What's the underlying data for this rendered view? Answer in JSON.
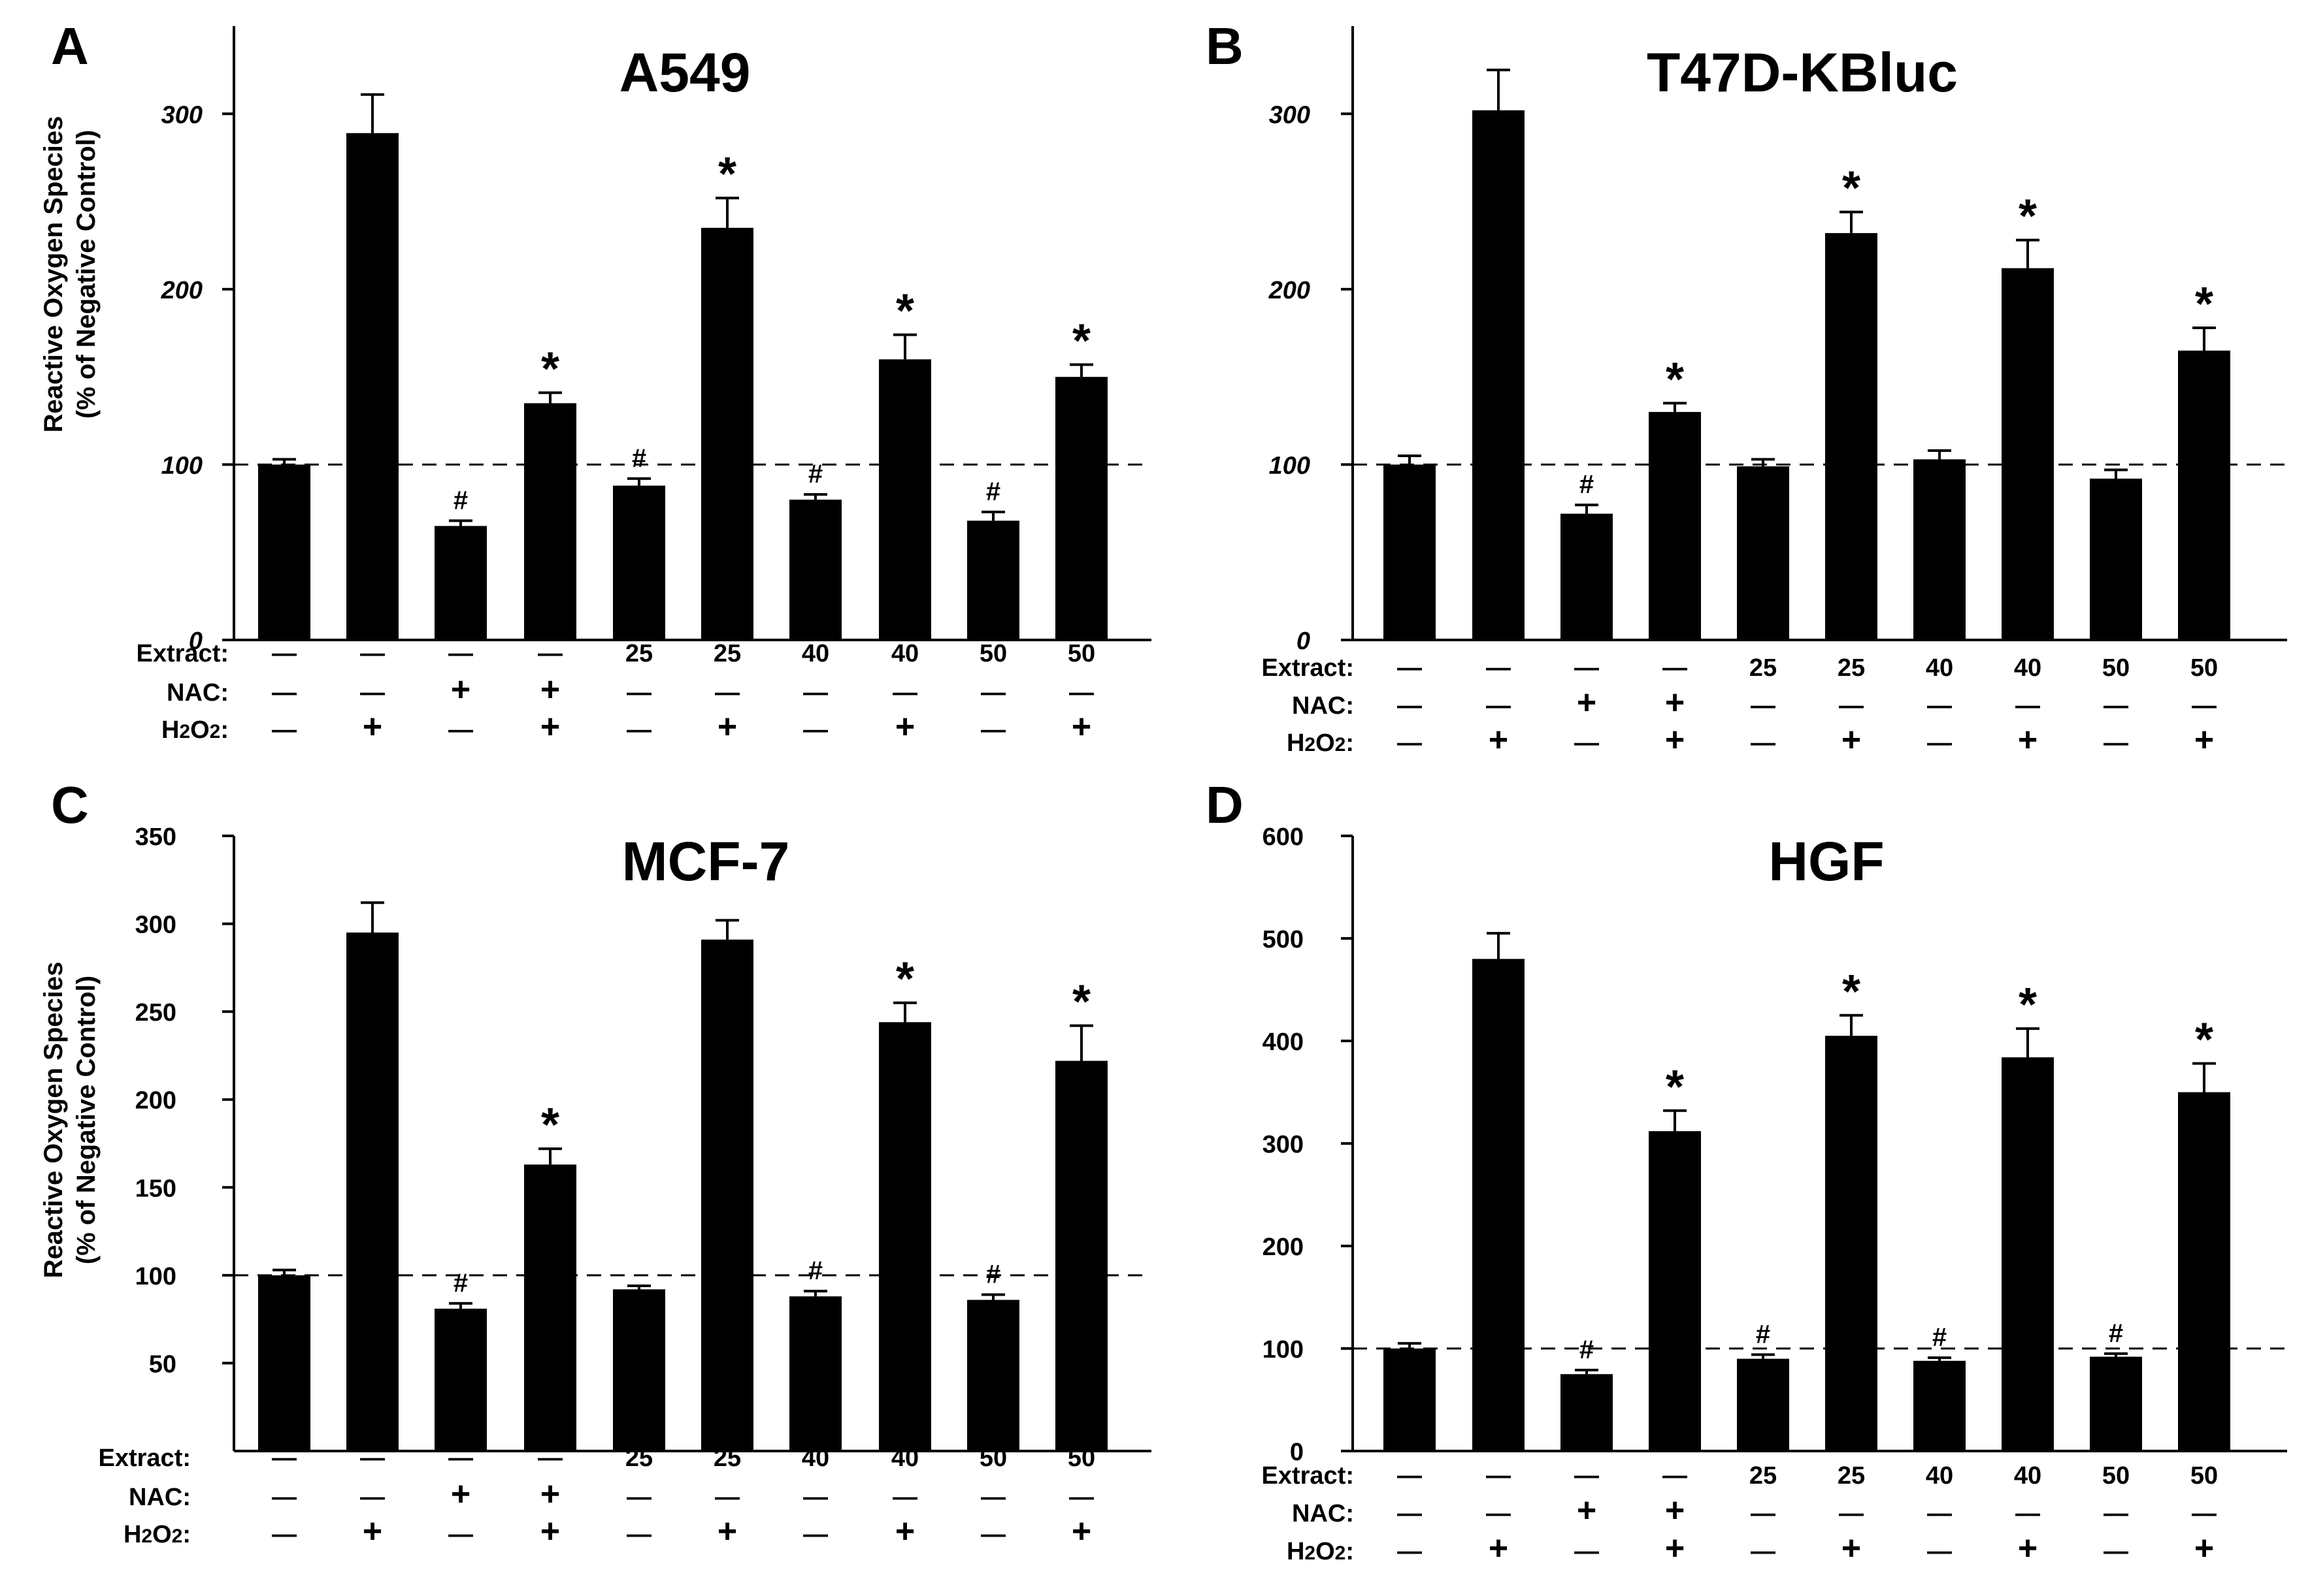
{
  "chart_data": [
    {
      "panel_label": "A",
      "type": "bar",
      "title": "A549",
      "ylabel_line1": "Reactive Oxygen Species",
      "ylabel_line2": "(% of Negative Control)",
      "ylim": [
        0,
        350
      ],
      "yticks": [
        0,
        100,
        200,
        300
      ],
      "ytick_labels": [
        "0",
        "100",
        "200",
        "300"
      ],
      "tick_style": "italic",
      "reference_line": 100,
      "values": [
        100,
        289,
        65,
        135,
        88,
        235,
        80,
        160,
        68,
        150
      ],
      "errors": [
        3,
        22,
        3,
        6,
        4,
        17,
        3,
        14,
        5,
        7
      ],
      "annotations": [
        "",
        "",
        "#",
        "*",
        "#",
        "*",
        "#",
        "*",
        "#",
        "*"
      ],
      "condition_labels": [
        "Extract:",
        "NAC:",
        "H2O2:"
      ],
      "extract": [
        "—",
        "—",
        "—",
        "—",
        "25",
        "25",
        "40",
        "40",
        "50",
        "50"
      ],
      "nac": [
        "—",
        "—",
        "+",
        "+",
        "—",
        "—",
        "—",
        "—",
        "—",
        "—"
      ],
      "h2o2": [
        "—",
        "+",
        "—",
        "+",
        "—",
        "+",
        "—",
        "+",
        "—",
        "+"
      ]
    },
    {
      "panel_label": "B",
      "type": "bar",
      "title": "T47D-KBluc",
      "ylabel_line1": "",
      "ylabel_line2": "",
      "ylim": [
        0,
        350
      ],
      "yticks": [
        0,
        100,
        200,
        300
      ],
      "ytick_labels": [
        "0",
        "100",
        "200",
        "300"
      ],
      "tick_style": "italic",
      "reference_line": 100,
      "values": [
        100,
        302,
        72,
        130,
        99,
        232,
        103,
        212,
        92,
        165
      ],
      "errors": [
        5,
        23,
        5,
        5,
        4,
        12,
        5,
        16,
        5,
        13
      ],
      "annotations": [
        "",
        "",
        "#",
        "*",
        "",
        "*",
        "",
        "*",
        "",
        "*"
      ],
      "condition_labels": [
        "Extract:",
        "NAC:",
        "H2O2:"
      ],
      "extract": [
        "—",
        "—",
        "—",
        "—",
        "25",
        "25",
        "40",
        "40",
        "50",
        "50"
      ],
      "nac": [
        "—",
        "—",
        "+",
        "+",
        "—",
        "—",
        "—",
        "—",
        "—",
        "—"
      ],
      "h2o2": [
        "—",
        "+",
        "—",
        "+",
        "—",
        "+",
        "—",
        "+",
        "—",
        "+"
      ]
    },
    {
      "panel_label": "C",
      "type": "bar",
      "title": "MCF-7",
      "ylabel_line1": "Reactive Oxygen Species",
      "ylabel_line2": "(% of Negative Control)",
      "ylim": [
        0,
        350
      ],
      "yticks": [
        50,
        100,
        150,
        200,
        250,
        300,
        350
      ],
      "ytick_labels": [
        "50",
        "100",
        "150",
        "200",
        "250",
        "300",
        "350"
      ],
      "tick_style": "normal",
      "reference_line": 100,
      "values": [
        100,
        295,
        81,
        163,
        92,
        291,
        88,
        244,
        86,
        222
      ],
      "errors": [
        3,
        17,
        3,
        9,
        2,
        11,
        3,
        11,
        3,
        20
      ],
      "annotations": [
        "",
        "",
        "#",
        "*",
        "",
        "",
        "#",
        "*",
        "#",
        "*"
      ],
      "condition_labels": [
        "Extract:",
        "NAC:",
        "H2O2:"
      ],
      "extract": [
        "—",
        "—",
        "—",
        "—",
        "25",
        "25",
        "40",
        "40",
        "50",
        "50"
      ],
      "nac": [
        "—",
        "—",
        "+",
        "+",
        "—",
        "—",
        "—",
        "—",
        "—",
        "—"
      ],
      "h2o2": [
        "—",
        "+",
        "—",
        "+",
        "—",
        "+",
        "—",
        "+",
        "—",
        "+"
      ]
    },
    {
      "panel_label": "D",
      "type": "bar",
      "title": "HGF",
      "ylabel_line1": "",
      "ylabel_line2": "",
      "ylim": [
        0,
        600
      ],
      "yticks": [
        0,
        100,
        200,
        300,
        400,
        500,
        600
      ],
      "ytick_labels": [
        "0",
        "100",
        "200",
        "300",
        "400",
        "500",
        "600"
      ],
      "tick_style": "normal",
      "reference_line": 100,
      "values": [
        100,
        480,
        75,
        312,
        90,
        405,
        88,
        384,
        92,
        350
      ],
      "errors": [
        5,
        25,
        4,
        20,
        4,
        20,
        3,
        28,
        3,
        28
      ],
      "annotations": [
        "",
        "",
        "#",
        "*",
        "#",
        "*",
        "#",
        "*",
        "#",
        "*"
      ],
      "condition_labels": [
        "Extract:",
        "NAC:",
        "H2O2:"
      ],
      "extract": [
        "—",
        "—",
        "—",
        "—",
        "25",
        "25",
        "40",
        "40",
        "50",
        "50"
      ],
      "nac": [
        "—",
        "—",
        "+",
        "+",
        "—",
        "—",
        "—",
        "—",
        "—",
        "—"
      ],
      "h2o2": [
        "—",
        "+",
        "—",
        "+",
        "—",
        "+",
        "—",
        "+",
        "—",
        "+"
      ]
    }
  ]
}
